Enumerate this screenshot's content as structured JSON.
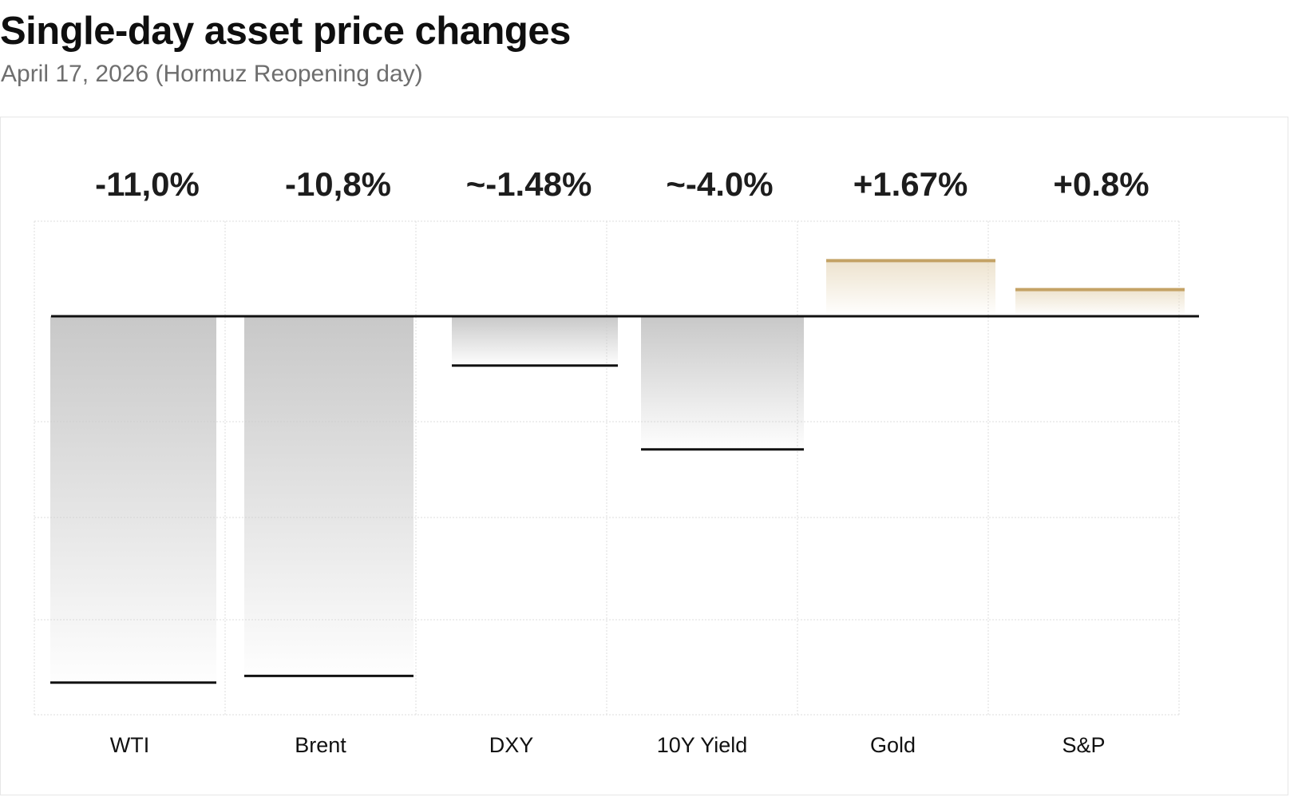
{
  "page": {
    "title": "Single-day asset price changes",
    "subtitle": "April 17, 2026 (Hormuz Reopening day)"
  },
  "chart_data": {
    "type": "bar",
    "title": "Single-day asset price changes",
    "subtitle": "April 17, 2026 (Hormuz Reopening day)",
    "categories": [
      "WTI",
      "Brent",
      "DXY",
      "10Y Yield",
      "Gold",
      "S&P"
    ],
    "values": [
      -11.0,
      -10.8,
      -1.48,
      -4.0,
      1.67,
      0.8
    ],
    "value_labels": [
      "-11,0%",
      "-10,8%",
      "~-1.48%",
      "~-4.0%",
      "+1.67%",
      "+0.8%"
    ],
    "xlabel": "",
    "ylabel": "",
    "grid": true,
    "legend": "none",
    "colors": {
      "negative_line": "#111111",
      "negative_fill": "#c8c8c8",
      "positive_line": "#c4a265",
      "positive_fill": "#e9dcc2",
      "zero_line": "#111111",
      "grid": "#dedede"
    }
  }
}
